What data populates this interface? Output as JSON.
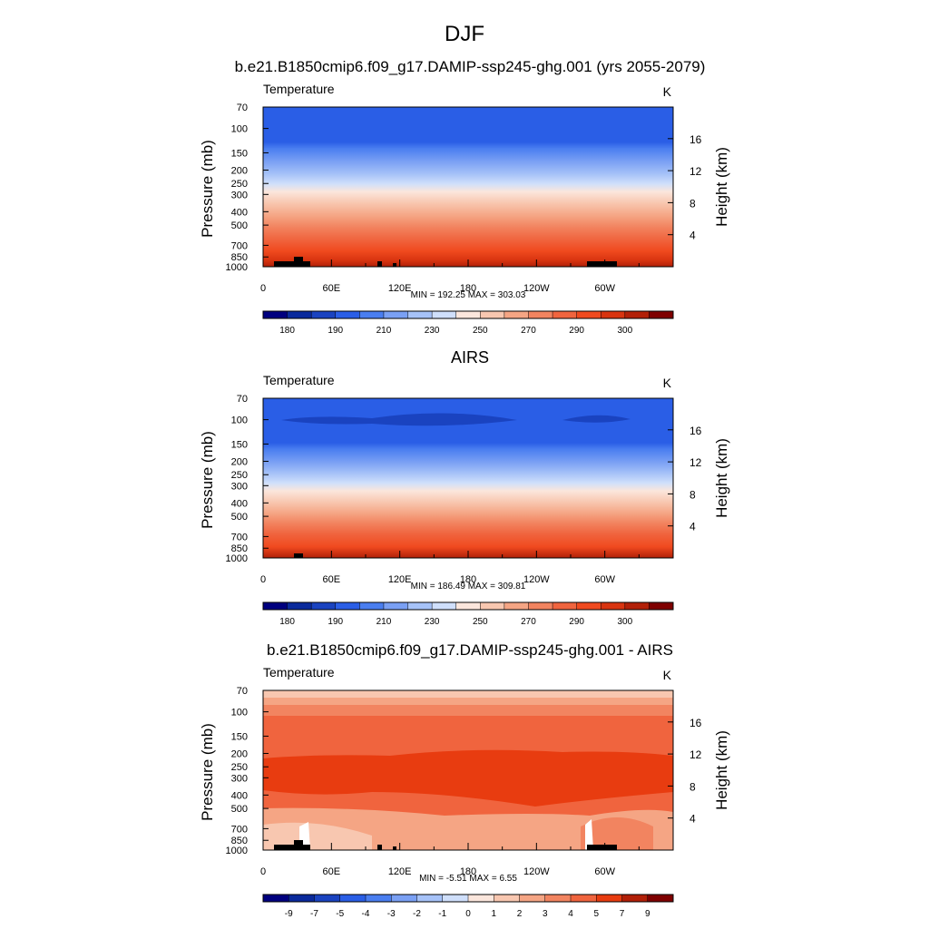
{
  "figure": {
    "title": "DJF"
  },
  "colors": {
    "abs_levels": [
      "#00007f",
      "#0a2a9c",
      "#1a43c0",
      "#2a5ee6",
      "#4a7ef0",
      "#7aa0f4",
      "#a6c2f8",
      "#cfdffb",
      "#fbe6dc",
      "#f8c7b0",
      "#f5a584",
      "#f28460",
      "#f0643e",
      "#f04a1f",
      "#d83410",
      "#b22008",
      "#7f0000"
    ],
    "diff_levels": [
      "#00007f",
      "#0a2a9c",
      "#1a43c0",
      "#2a5ee6",
      "#4a7ef0",
      "#7aa0f4",
      "#a6c2f8",
      "#cfdffb",
      "#fbe6dc",
      "#f8c7b0",
      "#f5a584",
      "#f28460",
      "#f0643e",
      "#e83c10",
      "#b22008",
      "#7f0000"
    ],
    "land_mask": "#000000"
  },
  "chart_data": [
    {
      "type": "heatmap",
      "title": "b.e21.B1850cmip6.f09_g17.DAMIP-ssp245-ghg.001 (yrs 2055-2079)",
      "left_label": "Temperature",
      "right_label": "K",
      "ylabel": "Pressure (mb)",
      "y2label": "Height (km)",
      "x_ticks": [
        "0",
        "60E",
        "120E",
        "180",
        "120W",
        "60W"
      ],
      "y_ticks": [
        "70",
        "100",
        "150",
        "200",
        "250",
        "300",
        "400",
        "500",
        "700",
        "850",
        "1000"
      ],
      "y2_ticks": [
        "16",
        "12",
        "8",
        "4"
      ],
      "stats": "MIN = 192.25  MAX = 303.03",
      "colorbar_labels": [
        "180",
        "190",
        "210",
        "230",
        "250",
        "270",
        "290",
        "300"
      ],
      "ylim": [
        1000,
        70
      ],
      "xlim": [
        0,
        360
      ],
      "min": 192.25,
      "max": 303.03
    },
    {
      "type": "heatmap",
      "title": "AIRS",
      "left_label": "Temperature",
      "right_label": "K",
      "ylabel": "Pressure (mb)",
      "y2label": "Height (km)",
      "x_ticks": [
        "0",
        "60E",
        "120E",
        "180",
        "120W",
        "60W"
      ],
      "y_ticks": [
        "70",
        "100",
        "150",
        "200",
        "250",
        "300",
        "400",
        "500",
        "700",
        "850",
        "1000"
      ],
      "y2_ticks": [
        "16",
        "12",
        "8",
        "4"
      ],
      "stats": "MIN = 186.49  MAX = 309.81",
      "colorbar_labels": [
        "180",
        "190",
        "210",
        "230",
        "250",
        "270",
        "290",
        "300"
      ],
      "ylim": [
        1000,
        70
      ],
      "xlim": [
        0,
        360
      ],
      "min": 186.49,
      "max": 309.81
    },
    {
      "type": "heatmap",
      "title": "b.e21.B1850cmip6.f09_g17.DAMIP-ssp245-ghg.001 - AIRS",
      "left_label": "Temperature",
      "right_label": "K",
      "ylabel": "Pressure (mb)",
      "y2label": "Height (km)",
      "x_ticks": [
        "0",
        "60E",
        "120E",
        "180",
        "120W",
        "60W"
      ],
      "y_ticks": [
        "70",
        "100",
        "150",
        "200",
        "250",
        "300",
        "400",
        "500",
        "700",
        "850",
        "1000"
      ],
      "y2_ticks": [
        "16",
        "12",
        "8",
        "4"
      ],
      "stats": "MIN =  -5.51  MAX =   6.55",
      "colorbar_labels": [
        "-9",
        "-7",
        "-5",
        "-4",
        "-3",
        "-2",
        "-1",
        "0",
        "1",
        "2",
        "3",
        "4",
        "5",
        "7",
        "9"
      ],
      "ylim": [
        1000,
        70
      ],
      "xlim": [
        0,
        360
      ],
      "min": -5.51,
      "max": 6.55
    }
  ]
}
